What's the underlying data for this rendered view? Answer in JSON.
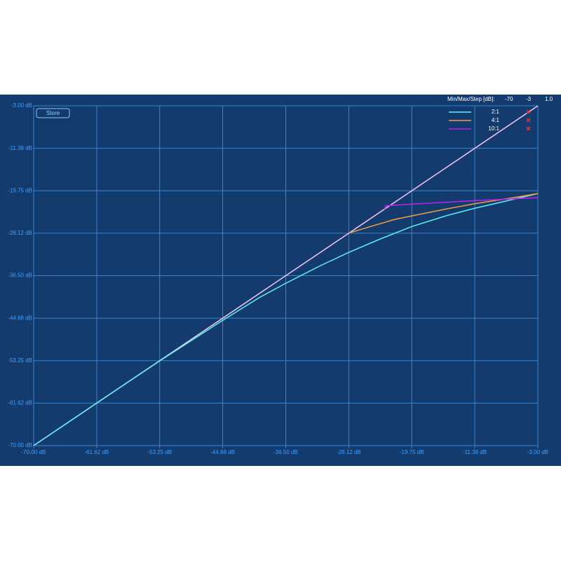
{
  "controls": {
    "store": "Store",
    "range_label": "Min/Max/Step [dB]:",
    "min": "-70",
    "max": "-3",
    "step": "1.0"
  },
  "chart_data": {
    "type": "line",
    "grid": true,
    "legend": "upper right",
    "xlim": [
      -70,
      -3
    ],
    "ylim": [
      -70,
      -3
    ],
    "xticks": [
      {
        "value": -70,
        "label": "-70.00 dB"
      },
      {
        "value": -61.62,
        "label": "-61.62 dB"
      },
      {
        "value": -53.25,
        "label": "-53.25 dB"
      },
      {
        "value": -44.88,
        "label": "-44.88 dB"
      },
      {
        "value": -36.5,
        "label": "-36.50 dB"
      },
      {
        "value": -28.12,
        "label": "-28.12 dB"
      },
      {
        "value": -19.75,
        "label": "-19.75 dB"
      },
      {
        "value": -11.38,
        "label": "-11.38 dB"
      },
      {
        "value": -3,
        "label": "-3.00 dB"
      }
    ],
    "yticks": [
      {
        "value": -70,
        "label": "-70.00 dB"
      },
      {
        "value": -61.62,
        "label": "-61.62 dB"
      },
      {
        "value": -53.25,
        "label": "-53.25 dB"
      },
      {
        "value": -44.88,
        "label": "-44.88 dB"
      },
      {
        "value": -36.5,
        "label": "-36.50 dB"
      },
      {
        "value": -28.12,
        "label": "-28.12 dB"
      },
      {
        "value": -19.75,
        "label": "-19.75 dB"
      },
      {
        "value": -11.38,
        "label": "-11.38 dB"
      },
      {
        "value": -3,
        "label": "-3.00 dB"
      }
    ],
    "series": [
      {
        "color": "#f2c4f2",
        "x": [
          -70,
          -3
        ],
        "values": [
          -70,
          -3
        ]
      },
      {
        "name": "2:1",
        "color": "#5ff0f0",
        "x": [
          -70,
          -60,
          -53.25,
          -48,
          -44.88,
          -40,
          -36.5,
          -32,
          -28.12,
          -24,
          -19.75,
          -15,
          -11.38,
          -7,
          -3
        ],
        "values": [
          -70,
          -60,
          -53.3,
          -48.3,
          -45.3,
          -40.8,
          -38.0,
          -34.6,
          -31.9,
          -29.3,
          -26.8,
          -24.6,
          -23.2,
          -21.7,
          -20.3
        ]
      },
      {
        "name": "4:1",
        "color": "#f0a040",
        "x": [
          -28.12,
          -25,
          -22,
          -19.75,
          -15,
          -11.38,
          -7,
          -3
        ],
        "values": [
          -28.1,
          -26.7,
          -25.4,
          -24.7,
          -23.3,
          -22.3,
          -21.3,
          -20.3
        ]
      },
      {
        "name": "10:1",
        "color": "#c020f0",
        "x": [
          -23.4,
          -23.2,
          -19.75,
          -15,
          -11.38,
          -7,
          -3
        ],
        "values": [
          -23.4,
          -22.7,
          -22.4,
          -22.0,
          -21.7,
          -21.4,
          -21.1
        ]
      }
    ]
  }
}
